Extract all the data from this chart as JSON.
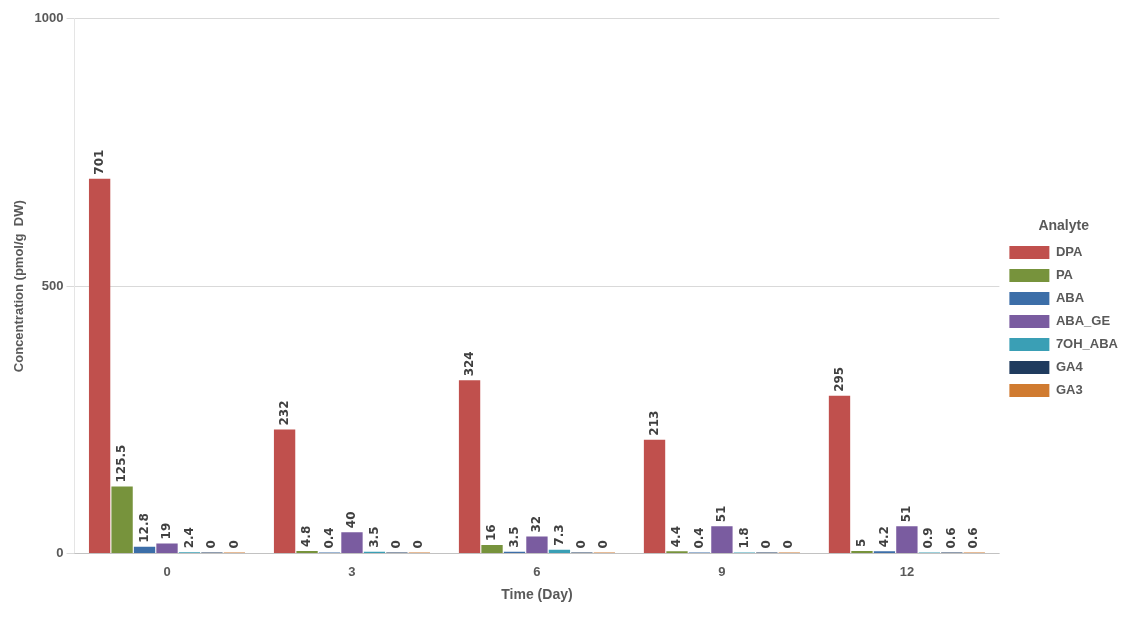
{
  "chart_data": {
    "type": "bar",
    "xlabel": "Time (Day)",
    "ylabel": "Concentration (pmol/g  DW)",
    "legend_title": "Analyte",
    "legend": "right",
    "grid": "y",
    "data_labels": true,
    "categories": [
      "0",
      "3",
      "6",
      "9",
      "12"
    ],
    "ylim": [
      0,
      1000
    ],
    "yticks": [
      0,
      500,
      {
        "value": 1000,
        "label": "1000"
      }
    ],
    "series": [
      {
        "name": "DPA",
        "color": "#c0504d",
        "values": [
          701,
          232,
          324,
          213,
          295
        ]
      },
      {
        "name": "PA",
        "color": "#77933c",
        "values": [
          125.5,
          4.8,
          16,
          4.4,
          5
        ]
      },
      {
        "name": "ABA",
        "color": "#3c6ea8",
        "values": [
          12.8,
          0.4,
          3.5,
          0.4,
          4.2
        ]
      },
      {
        "name": "ABA_GE",
        "color": "#7a5ca0",
        "values": [
          19,
          40,
          32,
          51,
          51
        ]
      },
      {
        "name": "7OH_ABA",
        "color": "#3a9fb5",
        "values": [
          2.4,
          3.5,
          7.3,
          1.8,
          0.9
        ]
      },
      {
        "name": "GA4",
        "color": "#1f3b5e",
        "values": [
          0,
          0,
          0,
          0,
          0.6
        ]
      },
      {
        "name": "GA3",
        "color": "#d07b30",
        "values": [
          0,
          0,
          0,
          0,
          0.6
        ]
      }
    ]
  }
}
